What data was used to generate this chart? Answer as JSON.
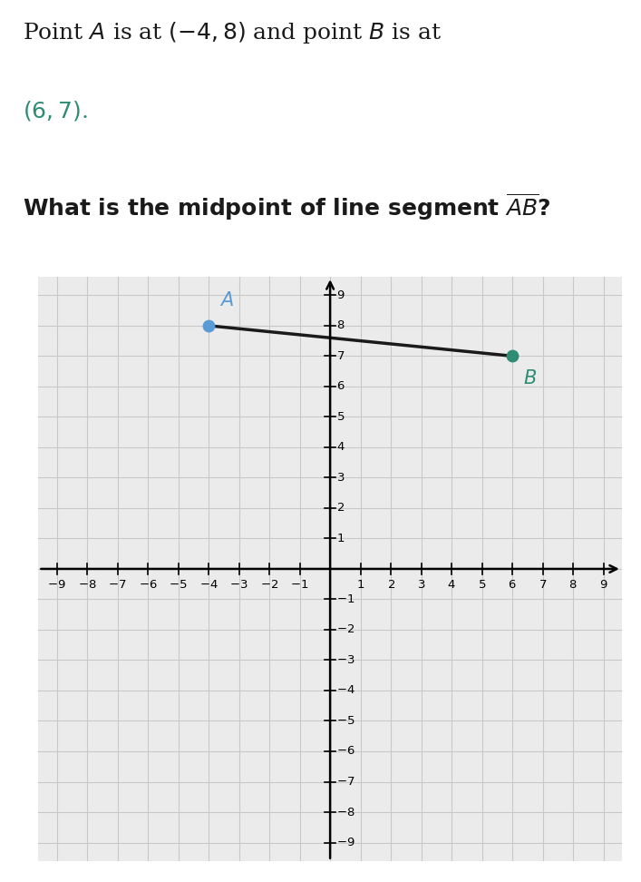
{
  "point_A": [
    -4,
    8
  ],
  "point_B": [
    6,
    7
  ],
  "color_A": "#5b9bd5",
  "color_B": "#2e8b74",
  "color_line": "#1a1a1a",
  "label_A": "$\\mathit{A}$",
  "label_B": "$\\mathit{B}$",
  "axis_min": -9,
  "axis_max": 9,
  "grid_color": "#c8c8c8",
  "plot_bg": "#ebebeb",
  "text_color": "#222222",
  "teal_color": "#2e8b74"
}
